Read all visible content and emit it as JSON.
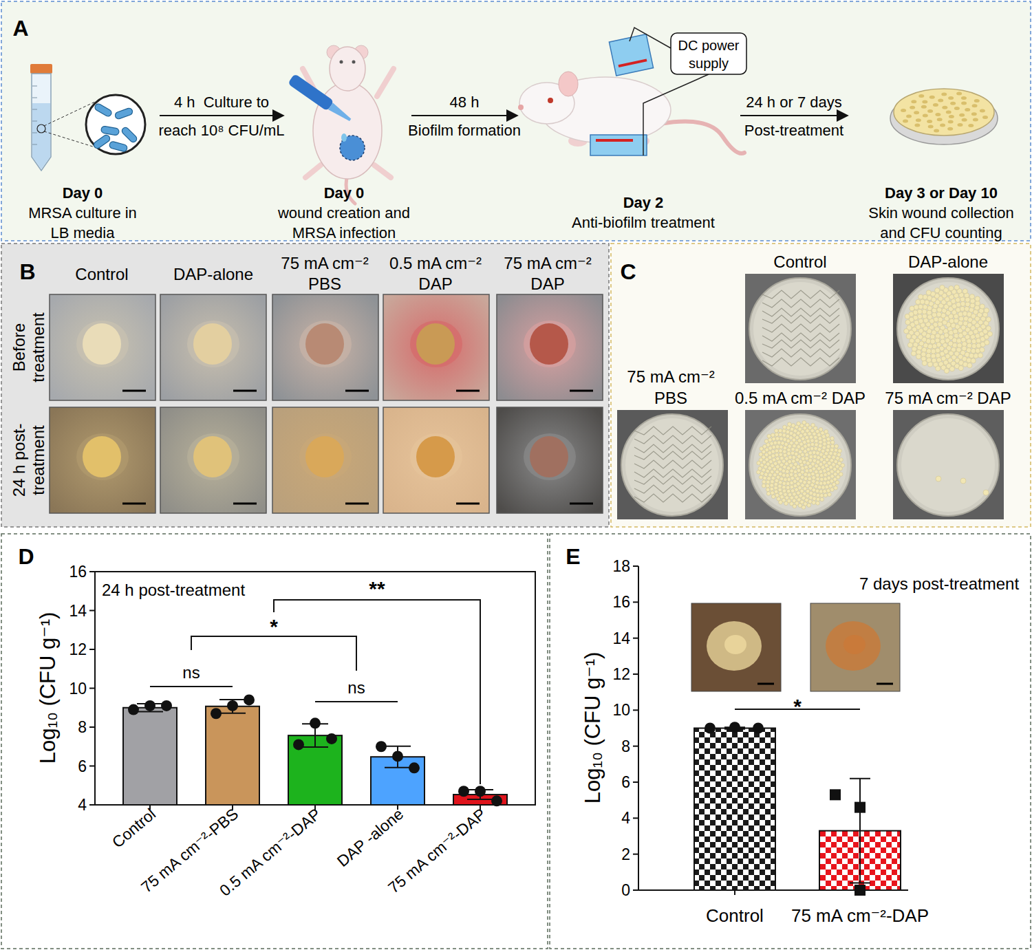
{
  "panels": {
    "A": {
      "label": "A",
      "steps": [
        {
          "day": "Day 0",
          "text": [
            "MRSA culture in",
            "LB media"
          ]
        },
        {
          "day": "Day 0",
          "text": [
            "wound creation and",
            "MRSA infection"
          ]
        },
        {
          "day": "Day 2",
          "text": [
            "Anti-biofilm treatment"
          ]
        },
        {
          "day": "Day 3 or Day 10",
          "text": [
            "Skin wound collection",
            "and CFU counting"
          ]
        }
      ],
      "arrows": [
        {
          "above": "4 h  Culture to",
          "below": "reach 10⁸ CFU/mL"
        },
        {
          "above": "48 h",
          "below": "Biofilm formation"
        },
        {
          "above": "24 h or 7 days",
          "below": "Post-treatment"
        }
      ],
      "device": [
        "DC power",
        "supply"
      ]
    },
    "B": {
      "label": "B",
      "columns": [
        [
          "Control"
        ],
        [
          "DAP-alone"
        ],
        [
          "75 mA cm⁻²",
          "PBS"
        ],
        [
          "0.5 mA cm⁻²",
          "DAP"
        ],
        [
          "75 mA cm⁻²",
          "DAP"
        ]
      ],
      "rows": [
        [
          "Before",
          "treatment"
        ],
        [
          "24 h post-",
          "treatment"
        ]
      ]
    },
    "C": {
      "label": "C",
      "plates": [
        [
          "Control"
        ],
        [
          "DAP-alone"
        ],
        [
          "75 mA cm⁻²",
          "PBS"
        ],
        [
          "0.5 mA cm⁻² DAP"
        ],
        [
          "75 mA cm⁻² DAP"
        ]
      ]
    }
  },
  "chart_data": [
    {
      "panel": "D",
      "type": "bar",
      "title": "24 h post-treatment",
      "y_label": "Log₁₀ (CFU g⁻¹)",
      "categories": [
        "Control",
        "75 mA cm⁻²-PBS",
        "0.5 mA cm⁻²-DAP",
        "DAP -alone",
        "75 mA cm⁻²-DAP"
      ],
      "values": [
        9.0,
        9.07,
        7.57,
        6.47,
        4.53
      ],
      "errors": [
        0.2,
        0.35,
        0.6,
        0.55,
        0.25
      ],
      "points": [
        [
          8.9,
          9.1,
          9.1
        ],
        [
          8.7,
          9.1,
          9.4
        ],
        [
          7.1,
          8.2,
          7.4
        ],
        [
          7.0,
          6.5,
          5.9
        ],
        [
          4.7,
          4.7,
          4.2
        ]
      ],
      "colors": [
        "#a1a1a5",
        "#c9955b",
        "#1db31d",
        "#4da3ff",
        "#e0141c"
      ],
      "marker": "circle",
      "ylim": [
        4,
        16
      ],
      "yticks": [
        4,
        6,
        8,
        10,
        12,
        14,
        16
      ],
      "grid": false,
      "annotations": [
        {
          "text": "ns",
          "between": [
            "Control",
            "75 mA cm⁻²-PBS"
          ]
        },
        {
          "text": "ns",
          "between": [
            "0.5 mA cm⁻²-DAP",
            "DAP -alone"
          ]
        },
        {
          "text": "*",
          "between": [
            [
              "Control",
              "75 mA cm⁻²-PBS"
            ],
            [
              "0.5 mA cm⁻²-DAP",
              "DAP -alone"
            ]
          ]
        },
        {
          "text": "**",
          "between": [
            [
              [
                "Control",
                "75 mA cm⁻²-PBS"
              ],
              [
                "0.5 mA cm⁻²-DAP",
                "DAP -alone"
              ]
            ],
            "75 mA cm⁻²-DAP"
          ]
        }
      ]
    },
    {
      "panel": "E",
      "type": "bar",
      "title": "7 days post-treatment",
      "y_label": "Log₁₀ (CFU g⁻¹)",
      "categories": [
        "Control",
        "75 mA cm⁻²-DAP"
      ],
      "series": [
        {
          "color": "#1a1a1a",
          "marker": "circle",
          "values": [
            9.0,
            null
          ],
          "errors": [
            0.05,
            null
          ],
          "points": [
            [
              9.0,
              9.05,
              9.0
            ],
            null
          ]
        },
        {
          "color": "#e8141c",
          "marker": "square",
          "values": [
            null,
            3.3
          ],
          "errors": [
            null,
            2.9
          ],
          "points": [
            null,
            [
              5.3,
              4.6,
              0.0
            ]
          ]
        }
      ],
      "ylim": [
        0,
        18
      ],
      "yticks": [
        0,
        2,
        4,
        6,
        8,
        10,
        12,
        14,
        16,
        18
      ],
      "grid": false,
      "annotations": [
        {
          "text": "*",
          "between": [
            "Control",
            "75 mA cm⁻²-DAP"
          ]
        }
      ]
    }
  ]
}
